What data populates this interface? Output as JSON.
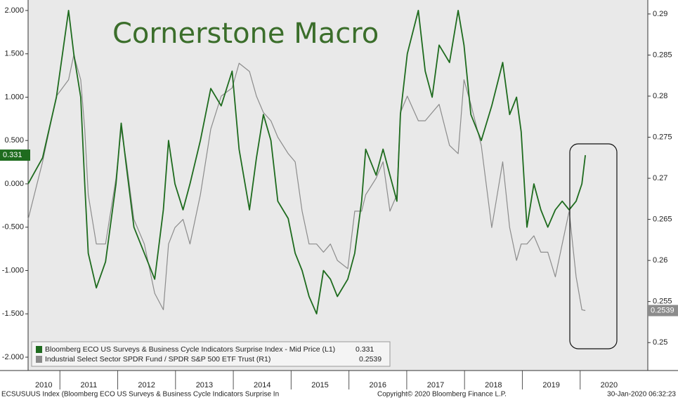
{
  "chart_data": {
    "type": "line",
    "title": "Cornerstone Macro",
    "x": [
      2010.45,
      2010.7,
      2010.94,
      2011.15,
      2011.24,
      2011.36,
      2011.43,
      2011.49,
      2011.63,
      2011.79,
      2011.97,
      2012.06,
      2012.15,
      2012.28,
      2012.46,
      2012.64,
      2012.79,
      2012.88,
      2012.99,
      2013.13,
      2013.25,
      2013.43,
      2013.61,
      2013.79,
      2013.98,
      2014.1,
      2014.28,
      2014.4,
      2014.52,
      2014.65,
      2014.77,
      2014.95,
      2015.07,
      2015.19,
      2015.31,
      2015.44,
      2015.56,
      2015.68,
      2015.8,
      2015.98,
      2016.1,
      2016.22,
      2016.29,
      2016.47,
      2016.59,
      2016.71,
      2016.83,
      2016.89,
      2017.01,
      2017.2,
      2017.32,
      2017.44,
      2017.56,
      2017.74,
      2017.89,
      2017.99,
      2018.11,
      2018.29,
      2018.47,
      2018.66,
      2018.78,
      2018.9,
      2018.98,
      2019.08,
      2019.2,
      2019.32,
      2019.44,
      2019.57,
      2019.69,
      2019.81,
      2019.93,
      2020.03,
      2020.09
    ],
    "series": [
      {
        "name": "Bloomberg ECO US Surveys & Business Cycle Indicators Surprise Index - Mid Price (L1)",
        "color": "#1e6b1e",
        "values": [
          0.0,
          0.3,
          1.0,
          2.0,
          1.5,
          1.0,
          0.0,
          -0.8,
          -1.2,
          -0.9,
          0.0,
          0.7,
          0.2,
          -0.5,
          -0.8,
          -1.1,
          -0.3,
          0.5,
          0.0,
          -0.3,
          0.0,
          0.5,
          1.1,
          0.9,
          1.3,
          0.4,
          -0.3,
          0.3,
          0.8,
          0.5,
          -0.2,
          -0.4,
          -0.8,
          -1.0,
          -1.3,
          -1.5,
          -1.0,
          -1.1,
          -1.3,
          -1.1,
          -0.8,
          -0.2,
          0.4,
          0.1,
          0.4,
          0.1,
          -0.2,
          0.8,
          1.5,
          2.0,
          1.3,
          1.0,
          1.6,
          1.4,
          2.0,
          1.6,
          0.8,
          0.5,
          0.9,
          1.4,
          0.8,
          1.0,
          0.6,
          -0.5,
          0.0,
          -0.3,
          -0.5,
          -0.3,
          -0.2,
          -0.3,
          -0.2,
          0.0,
          0.331
        ]
      },
      {
        "name": "Industrial Select Sector SPDR Fund / SPDR S&P 500 ETF Trust (R1)",
        "color": "#8c8c8c",
        "axis": "y2",
        "values": [
          0.265,
          0.272,
          0.28,
          0.282,
          0.285,
          0.282,
          0.276,
          0.268,
          0.262,
          0.262,
          0.27,
          0.276,
          0.272,
          0.265,
          0.262,
          0.256,
          0.254,
          0.262,
          0.264,
          0.265,
          0.262,
          0.268,
          0.276,
          0.28,
          0.281,
          0.284,
          0.283,
          0.28,
          0.278,
          0.277,
          0.275,
          0.273,
          0.272,
          0.266,
          0.262,
          0.262,
          0.261,
          0.262,
          0.26,
          0.259,
          0.266,
          0.266,
          0.268,
          0.27,
          0.272,
          0.266,
          0.268,
          0.278,
          0.28,
          0.277,
          0.277,
          0.278,
          0.279,
          0.274,
          0.273,
          0.282,
          0.279,
          0.274,
          0.264,
          0.272,
          0.264,
          0.26,
          0.262,
          0.262,
          0.263,
          0.261,
          0.261,
          0.258,
          0.262,
          0.266,
          0.258,
          0.254,
          0.2539
        ]
      }
    ],
    "xlim": [
      2010.45,
      2021.17
    ],
    "xticks": [
      {
        "value": 2010.72,
        "label": "2010"
      },
      {
        "value": 2011.5,
        "label": "2011"
      },
      {
        "value": 2012.5,
        "label": "2012"
      },
      {
        "value": 2013.5,
        "label": "2013"
      },
      {
        "value": 2014.5,
        "label": "2014"
      },
      {
        "value": 2015.5,
        "label": "2015"
      },
      {
        "value": 2016.5,
        "label": "2016"
      },
      {
        "value": 2017.5,
        "label": "2017"
      },
      {
        "value": 2018.5,
        "label": "2018"
      },
      {
        "value": 2019.5,
        "label": "2019"
      },
      {
        "value": 2020.5,
        "label": "2020"
      }
    ],
    "ylim": [
      -2.154,
      2.121
    ],
    "yticks": [
      {
        "value": 2,
        "label": "2.000"
      },
      {
        "value": 1.5,
        "label": "1.500"
      },
      {
        "value": 1,
        "label": "1.000"
      },
      {
        "value": 0.5,
        "label": "0.500"
      },
      {
        "value": 0,
        "label": "0.000"
      },
      {
        "value": -0.5,
        "label": "-0.500"
      },
      {
        "value": -1,
        "label": "-1.000"
      },
      {
        "value": -1.5,
        "label": "-1.500"
      },
      {
        "value": -2,
        "label": "-2.000"
      }
    ],
    "y2lim": [
      0.2466,
      0.2917
    ],
    "y2ticks": [
      0.29,
      0.285,
      0.28,
      0.275,
      0.27,
      0.265,
      0.26,
      0.255,
      0.25
    ],
    "legend": "lower left",
    "footer": {
      "left": "ECSUSUUS Index (Bloomberg ECO US Surveys & Business Cycle Indicators Surprise In",
      "center": "Copyright© 2020 Bloomberg Finance L.P.",
      "right": "30-Jan-2020 06:32:23"
    }
  }
}
